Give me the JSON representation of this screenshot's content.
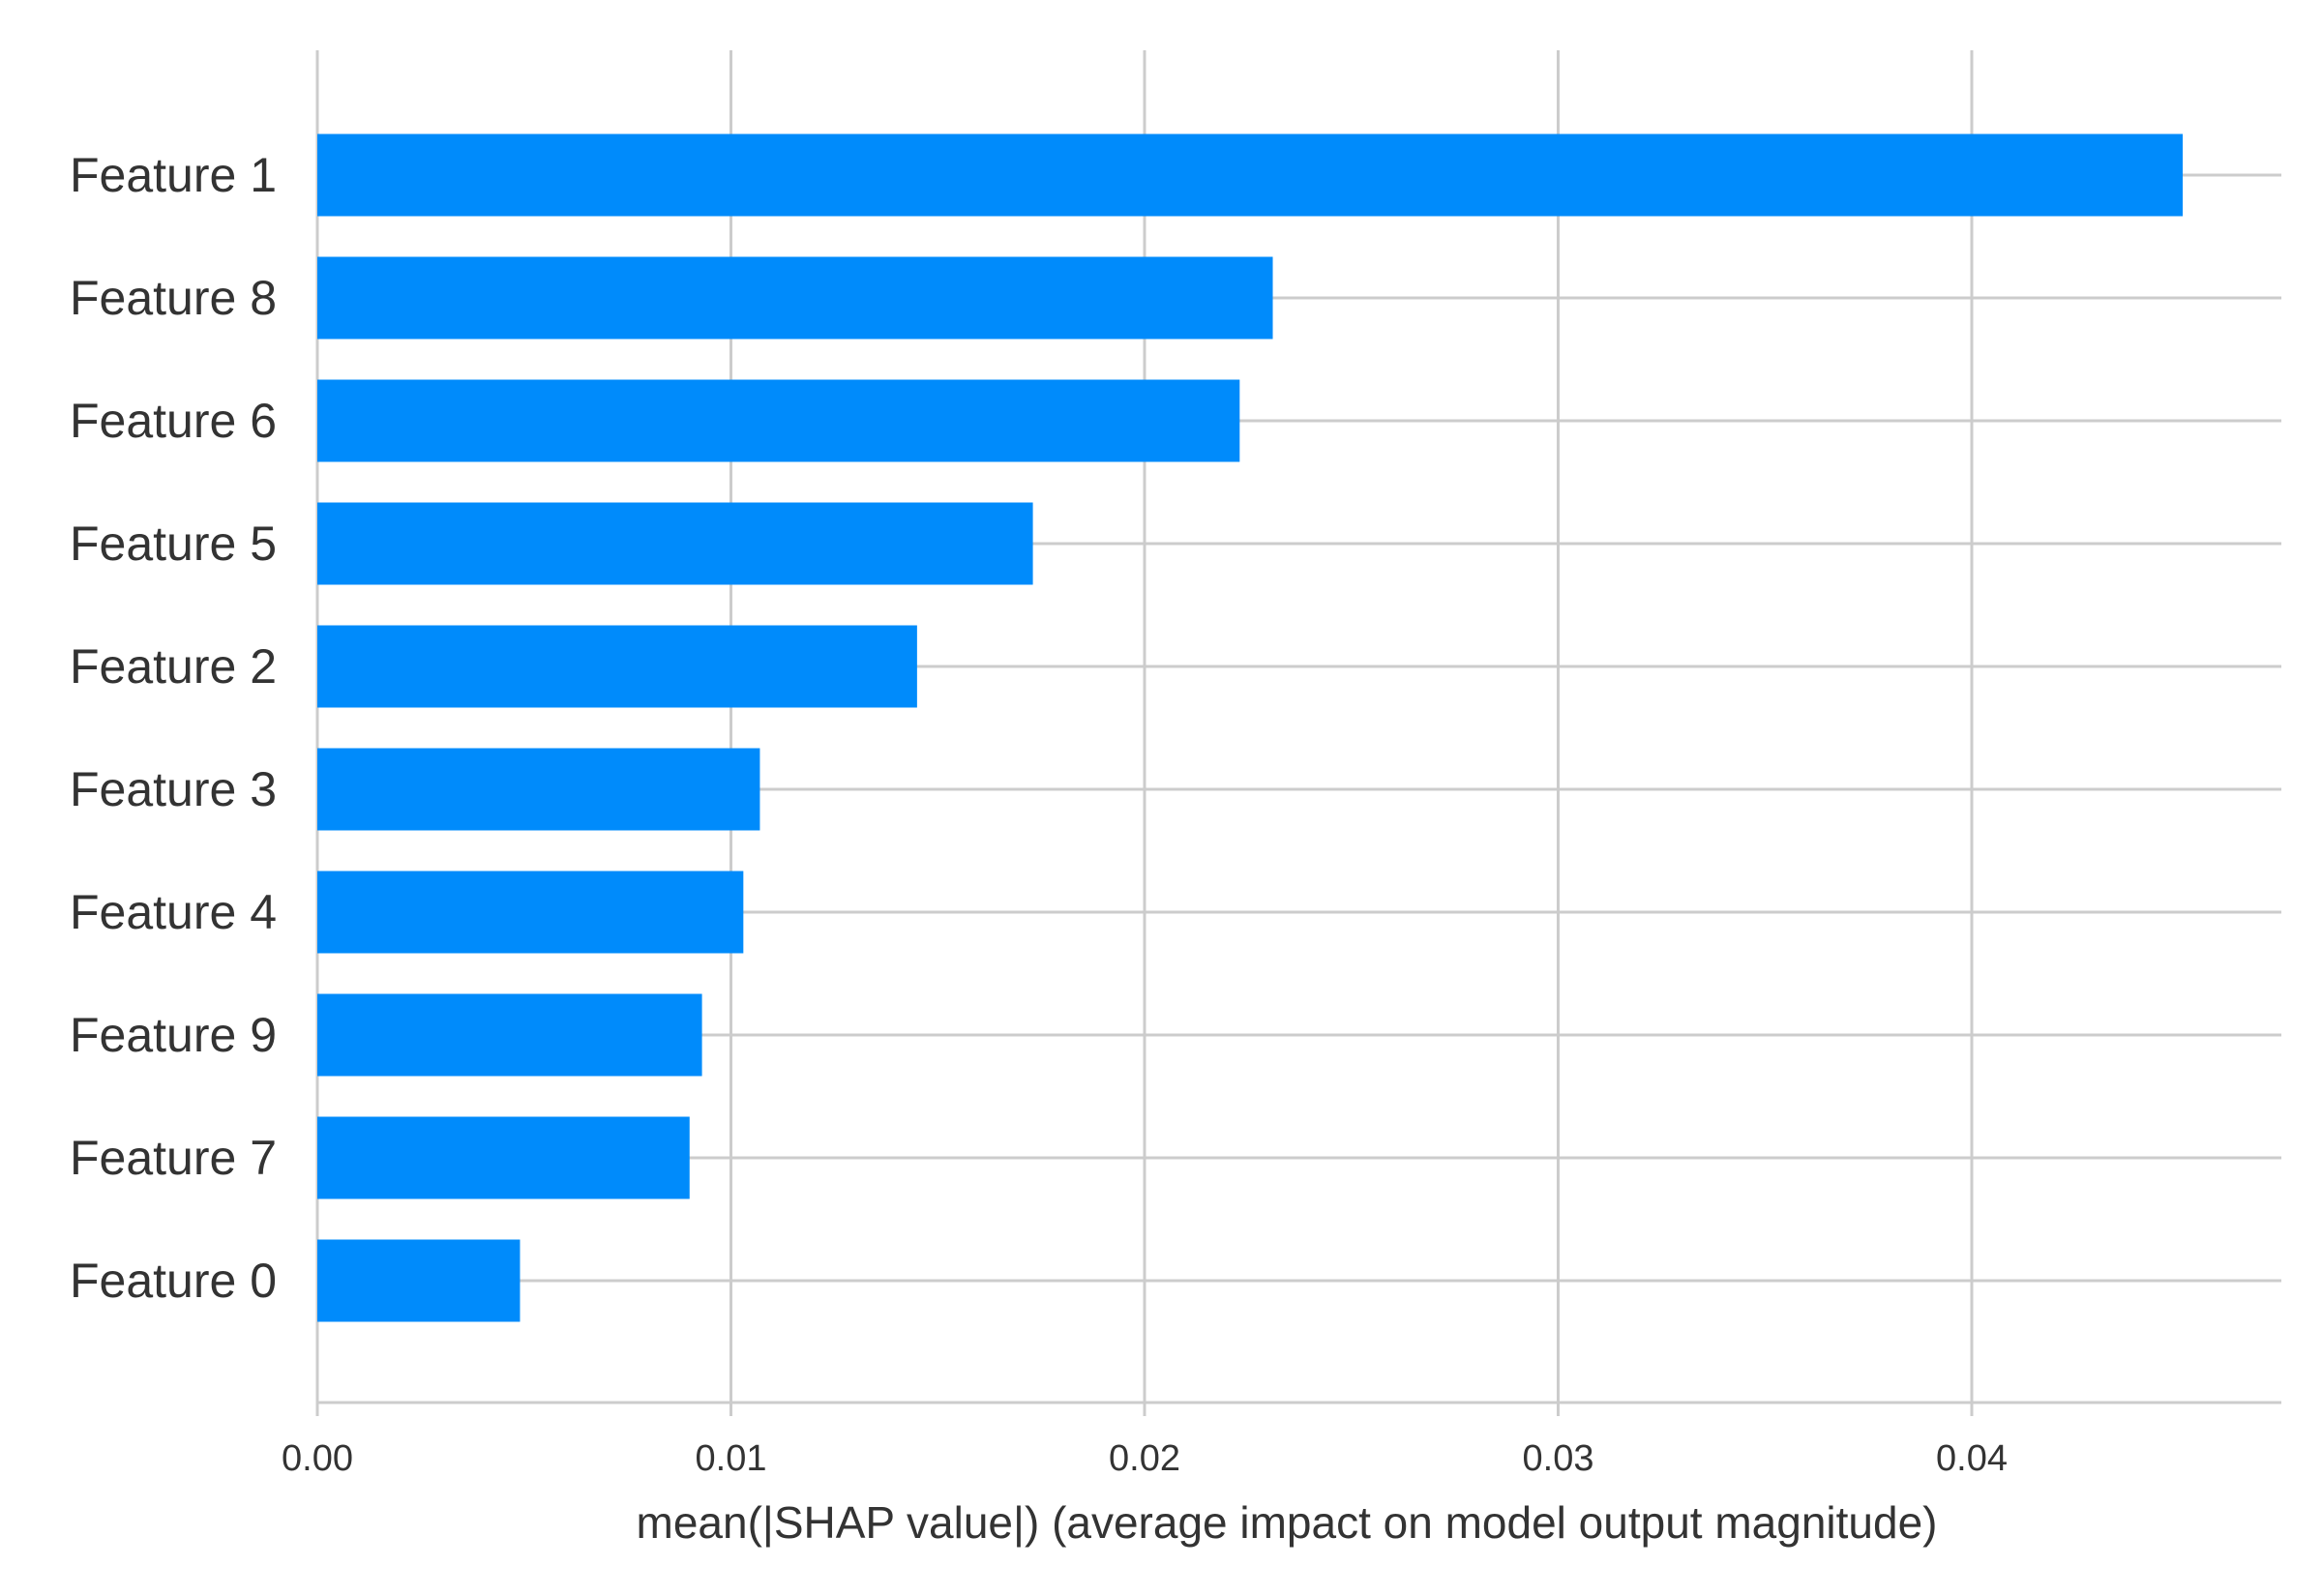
{
  "chart_data": {
    "type": "bar",
    "orientation": "horizontal",
    "categories": [
      "Feature 1",
      "Feature 8",
      "Feature 6",
      "Feature 5",
      "Feature 2",
      "Feature 3",
      "Feature 4",
      "Feature 9",
      "Feature 7",
      "Feature 0"
    ],
    "values": [
      0.0451,
      0.0231,
      0.0223,
      0.0173,
      0.0145,
      0.0107,
      0.0103,
      0.0093,
      0.009,
      0.0049
    ],
    "xlabel": "mean(|SHAP value|) (average impact on model output magnitude)",
    "ylabel": "",
    "xlim": [
      0,
      0.0475
    ],
    "xticks": [
      0.0,
      0.01,
      0.02,
      0.03,
      0.04
    ],
    "xtick_labels": [
      "0.00",
      "0.01",
      "0.02",
      "0.03",
      "0.04"
    ],
    "grid": true,
    "bar_color": "#008bfb",
    "grid_color": "#cccccc",
    "text_color": "#333333"
  }
}
